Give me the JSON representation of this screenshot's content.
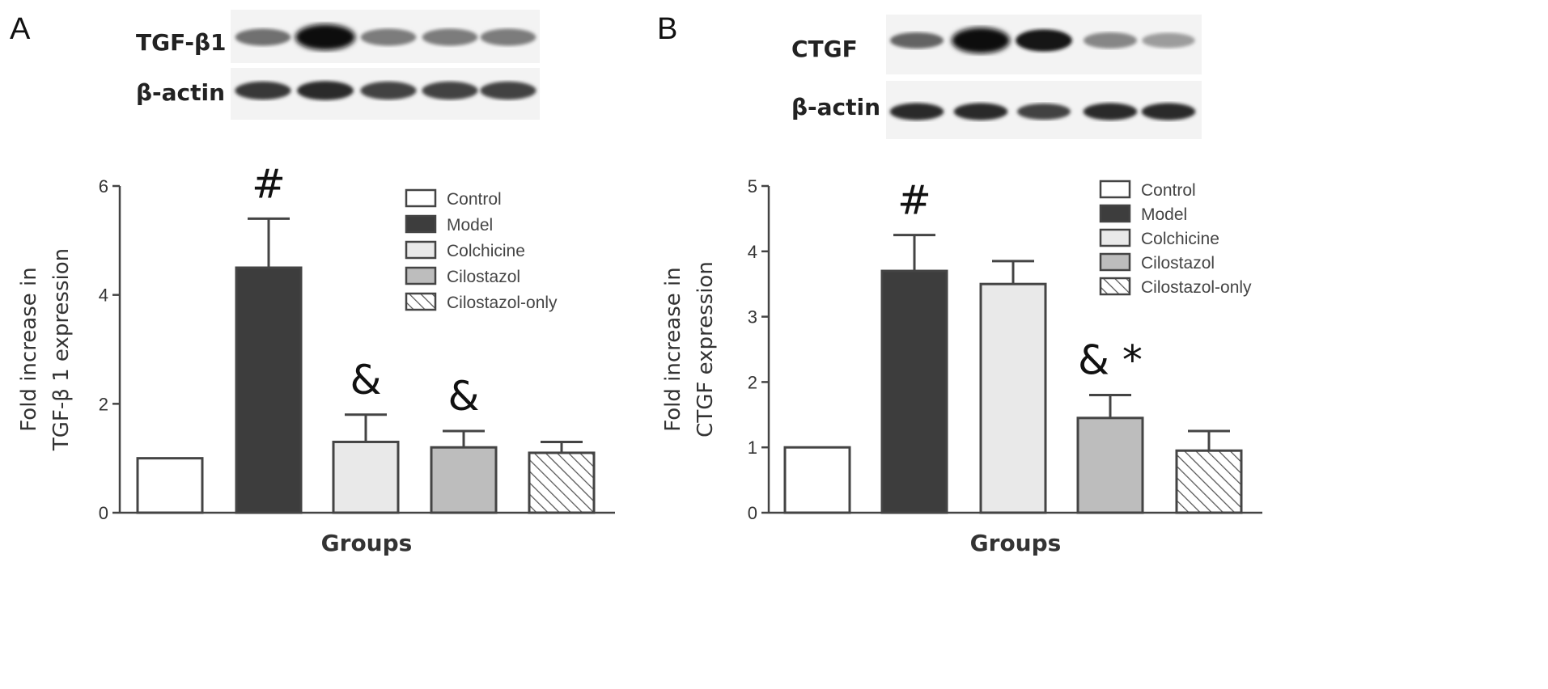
{
  "colors": {
    "Control": "#ffffff",
    "Model": "#3d3d3d",
    "Colchicine": "#e9e9e9",
    "Cilostazol": "#bdbdbd",
    "Cilostazol-only": "hatch"
  },
  "blots": [
    {
      "panel": "A",
      "rows": [
        {
          "label": "TGF-β1",
          "lane_intensity": [
            0.55,
            1.0,
            0.5,
            0.5,
            0.5
          ],
          "lane_thickness": [
            0.55,
            1.0,
            0.55,
            0.55,
            0.55
          ]
        },
        {
          "label": "β-actin",
          "lane_intensity": [
            0.8,
            0.85,
            0.75,
            0.75,
            0.75
          ],
          "lane_thickness": [
            0.6,
            0.65,
            0.6,
            0.6,
            0.6
          ]
        }
      ]
    },
    {
      "panel": "B",
      "rows": [
        {
          "label": "CTGF",
          "lane_intensity": [
            0.6,
            1.0,
            0.95,
            0.45,
            0.35
          ],
          "lane_thickness": [
            0.5,
            1.0,
            0.8,
            0.5,
            0.45
          ]
        },
        {
          "label": "β-actin",
          "lane_intensity": [
            0.85,
            0.85,
            0.75,
            0.85,
            0.85
          ],
          "lane_thickness": [
            0.55,
            0.55,
            0.5,
            0.55,
            0.55
          ]
        }
      ]
    }
  ],
  "chart_data": [
    {
      "type": "bar",
      "panel": "A",
      "xlabel": "Groups",
      "ylabel": [
        "Fold increase in",
        "TGF-β 1 expression"
      ],
      "ylim": [
        0,
        6
      ],
      "yticks": [
        0,
        2,
        4,
        6
      ],
      "legend_position": "top-right",
      "categories": [
        "Control",
        "Model",
        "Colchicine",
        "Cilostazol",
        "Cilostazol-only"
      ],
      "values": [
        1.0,
        4.5,
        1.3,
        1.2,
        1.1
      ],
      "errors": [
        0,
        0.9,
        0.5,
        0.3,
        0.2
      ],
      "annotations": [
        "",
        "#",
        "&",
        "&",
        ""
      ]
    },
    {
      "type": "bar",
      "panel": "B",
      "xlabel": "Groups",
      "ylabel": [
        "Fold increase in",
        "CTGF expression"
      ],
      "ylim": [
        0,
        5
      ],
      "yticks": [
        0,
        1,
        2,
        3,
        4,
        5
      ],
      "legend_position": "top-right",
      "categories": [
        "Control",
        "Model",
        "Colchicine",
        "Cilostazol",
        "Cilostazol-only"
      ],
      "values": [
        1.0,
        3.7,
        3.5,
        1.45,
        0.95
      ],
      "errors": [
        0,
        0.55,
        0.35,
        0.35,
        0.3
      ],
      "annotations": [
        "",
        "#",
        "",
        "& *",
        ""
      ]
    }
  ]
}
